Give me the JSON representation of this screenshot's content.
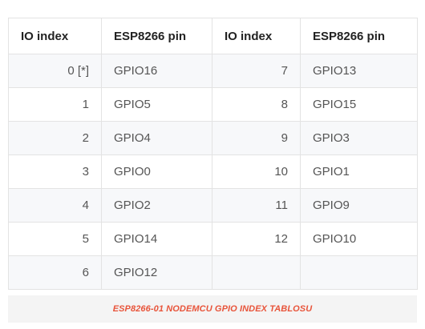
{
  "table": {
    "headers": [
      "IO index",
      "ESP8266 pin",
      "IO index",
      "ESP8266 pin"
    ],
    "rows": [
      [
        "0 [*]",
        "GPIO16",
        "7",
        "GPIO13"
      ],
      [
        "1",
        "GPIO5",
        "8",
        "GPIO15"
      ],
      [
        "2",
        "GPIO4",
        "9",
        "GPIO3"
      ],
      [
        "3",
        "GPIO0",
        "10",
        "GPIO1"
      ],
      [
        "4",
        "GPIO2",
        "11",
        "GPIO9"
      ],
      [
        "5",
        "GPIO14",
        "12",
        "GPIO10"
      ],
      [
        "6",
        "GPIO12",
        "",
        ""
      ]
    ]
  },
  "caption": "ESP8266-01 NODEMCU GPIO INDEX TABLOSU",
  "colors": {
    "caption_text": "#e8543a",
    "caption_bg": "#f4f4f4",
    "row_alt": "#f7f8fa",
    "border": "#e3e3e3"
  }
}
